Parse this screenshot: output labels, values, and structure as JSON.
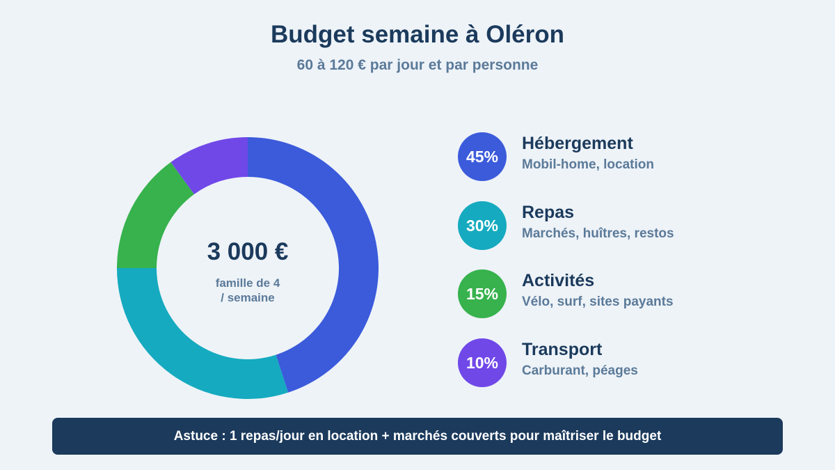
{
  "header": {
    "title": "Budget semaine à Oléron",
    "subtitle": "60 à 120 € par jour et par personne"
  },
  "center": {
    "total": "3 000 €",
    "caption_line1": "famille de 4",
    "caption_line2": "/ semaine"
  },
  "legend": [
    {
      "percent_label": "45%",
      "name": "Hébergement",
      "desc": "Mobil-home, location",
      "color": "#3b5bdb"
    },
    {
      "percent_label": "30%",
      "name": "Repas",
      "desc": "Marchés, huîtres, restos",
      "color": "#15aabf"
    },
    {
      "percent_label": "15%",
      "name": "Activités",
      "desc": "Vélo, surf, sites payants",
      "color": "#37b24d"
    },
    {
      "percent_label": "10%",
      "name": "Transport",
      "desc": "Carburant, péages",
      "color": "#7048e8"
    }
  ],
  "tip": "Astuce : 1 repas/jour en location + marchés couverts pour maîtriser le budget",
  "chart_data": {
    "type": "pie",
    "title": "Budget semaine à Oléron",
    "subtitle": "60 à 120 € par jour et par personne",
    "categories": [
      "Hébergement",
      "Repas",
      "Activités",
      "Transport"
    ],
    "values": [
      45,
      30,
      15,
      10
    ],
    "colors": [
      "#3b5bdb",
      "#15aabf",
      "#37b24d",
      "#7048e8"
    ],
    "center_total": "3 000 €"
  }
}
